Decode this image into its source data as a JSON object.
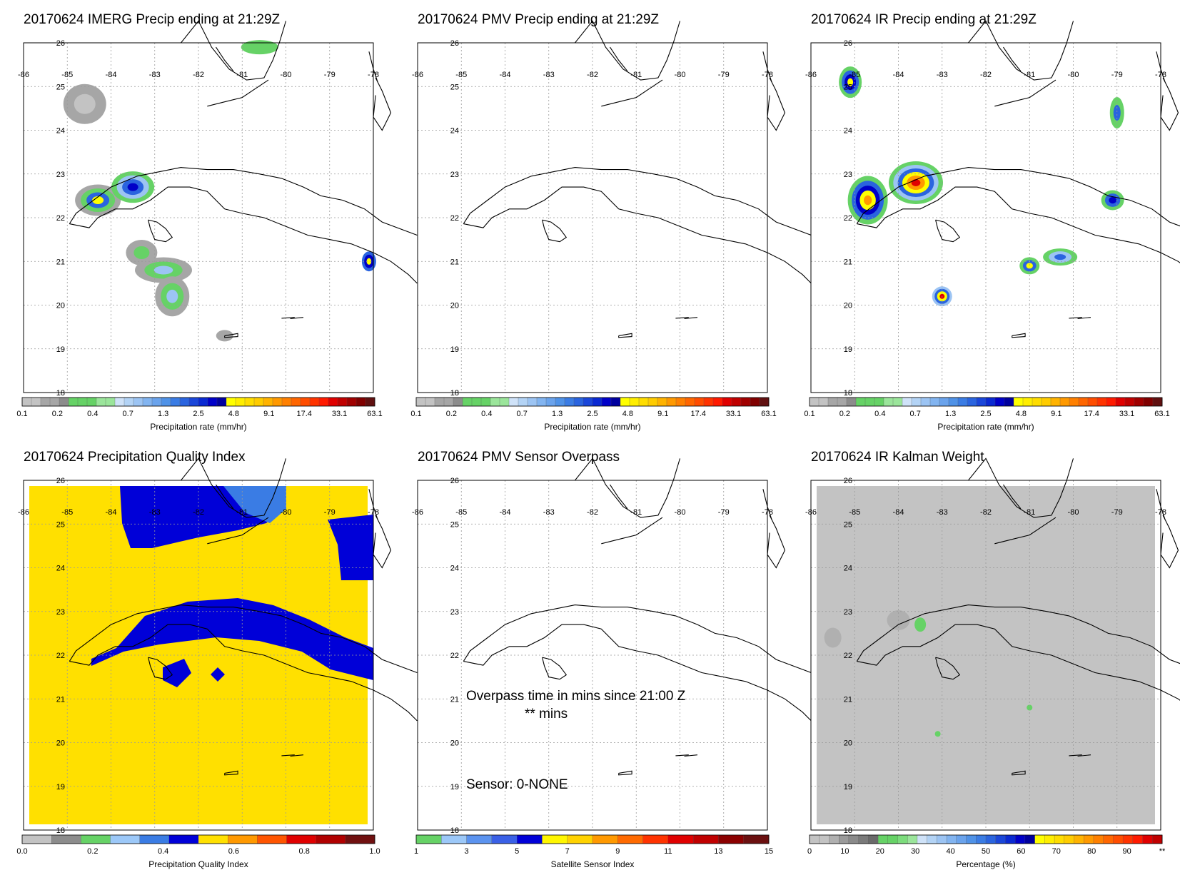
{
  "colors": {
    "precip": [
      "#c3c3c3",
      "#c3c3c3",
      "#a6a6a6",
      "#a6a6a6",
      "#8c8c8c",
      "#66d266",
      "#66d266",
      "#66d266",
      "#9be59b",
      "#9be59b",
      "#cfe2f8",
      "#b3d3f5",
      "#9cc4f3",
      "#82b4f0",
      "#6aa3ec",
      "#4f92e7",
      "#3a7ce4",
      "#2a64df",
      "#1a46d9",
      "#0a29d2",
      "#0000c8",
      "#00009e",
      "#ffff00",
      "#ffee00",
      "#ffdd00",
      "#ffcc00",
      "#ffb300",
      "#ff9900",
      "#ff8000",
      "#ff6600",
      "#ff4d00",
      "#ff3300",
      "#ff1a00",
      "#e00000",
      "#c00000",
      "#a00000",
      "#800000",
      "#601010"
    ],
    "quality": [
      "#c3c3c3",
      "#8c8c8c",
      "#66d266",
      "#9cc8f8",
      "#3a7ce4",
      "#0000d8",
      "#ffe000",
      "#ff9900",
      "#ff5500",
      "#e00000",
      "#b00000",
      "#701010"
    ],
    "sensor": [
      "#66d266",
      "#9cc8f8",
      "#5b93ef",
      "#3a60e6",
      "#0000d8",
      "#fff600",
      "#ffd200",
      "#ff9900",
      "#ff6a00",
      "#ff3300",
      "#e00000",
      "#c00000",
      "#8b0000",
      "#6b1010"
    ],
    "kalman": [
      "#c3c3c3",
      "#c3c3c3",
      "#b0b0b0",
      "#9a9a9a",
      "#8a8a8a",
      "#7a7a7a",
      "#6a6a6a",
      "#66d266",
      "#66d266",
      "#7cdc7c",
      "#9be59b",
      "#cfe2f8",
      "#b3d3f5",
      "#9cc4f3",
      "#82b4f0",
      "#6aa3ec",
      "#4f92e7",
      "#3a7ce4",
      "#2a64df",
      "#1a46d9",
      "#0a29d2",
      "#0000c8",
      "#00009e",
      "#ffff00",
      "#ffee00",
      "#ffdd00",
      "#ffcc00",
      "#ffb300",
      "#ff9900",
      "#ff8000",
      "#ff6600",
      "#ff4d00",
      "#ff3300",
      "#ff1a00",
      "#e00000",
      "#c00000"
    ],
    "coast": "#000000"
  },
  "map": {
    "lon_labels": [
      "-86",
      "-85",
      "-84",
      "-83",
      "-82",
      "-81",
      "-80",
      "-79",
      "-78"
    ],
    "lat_labels": [
      "26",
      "25",
      "24",
      "23",
      "22",
      "21",
      "20",
      "19",
      "18"
    ]
  },
  "panels": [
    {
      "title": "20170624 IMERG Precip ending at 21:29Z",
      "colorbar": {
        "palette": "precip",
        "labels": [
          "0.1",
          "0.2",
          "0.4",
          "0.7",
          "1.3",
          "2.5",
          "4.8",
          "9.1",
          "17.4",
          "33.1",
          "63.1"
        ],
        "title": "Precipitation rate (mm/hr)"
      }
    },
    {
      "title": "20170624 PMV Precip ending at 21:29Z",
      "colorbar": {
        "palette": "precip",
        "labels": [
          "0.1",
          "0.2",
          "0.4",
          "0.7",
          "1.3",
          "2.5",
          "4.8",
          "9.1",
          "17.4",
          "33.1",
          "63.1"
        ],
        "title": "Precipitation rate (mm/hr)"
      }
    },
    {
      "title": "20170624 IR Precip ending at 21:29Z",
      "colorbar": {
        "palette": "precip",
        "labels": [
          "0.1",
          "0.2",
          "0.4",
          "0.7",
          "1.3",
          "2.5",
          "4.8",
          "9.1",
          "17.4",
          "33.1",
          "63.1"
        ],
        "title": "Precipitation rate (mm/hr)"
      }
    },
    {
      "title": "20170624 Precipitation Quality Index",
      "colorbar": {
        "palette": "quality",
        "labels": [
          "0.0",
          "0.2",
          "0.4",
          "0.6",
          "0.8",
          "1.0"
        ],
        "title": "Precipitation Quality Index"
      }
    },
    {
      "title": "20170624 PMV Sensor Overpass",
      "colorbar": {
        "palette": "sensor",
        "labels": [
          "1",
          "3",
          "5",
          "7",
          "9",
          "11",
          "13",
          "15"
        ],
        "title": "Satellite Sensor Index"
      },
      "overpass_line1": "Overpass time in mins since 21:00 Z",
      "overpass_line2": "** mins",
      "sensor_line": "Sensor:   0-NONE"
    },
    {
      "title": "20170624 IR Kalman Weight",
      "colorbar": {
        "palette": "kalman",
        "labels": [
          "0",
          "10",
          "20",
          "30",
          "40",
          "50",
          "60",
          "70",
          "80",
          "90",
          "**"
        ],
        "title": "Percentage (%)"
      }
    }
  ]
}
